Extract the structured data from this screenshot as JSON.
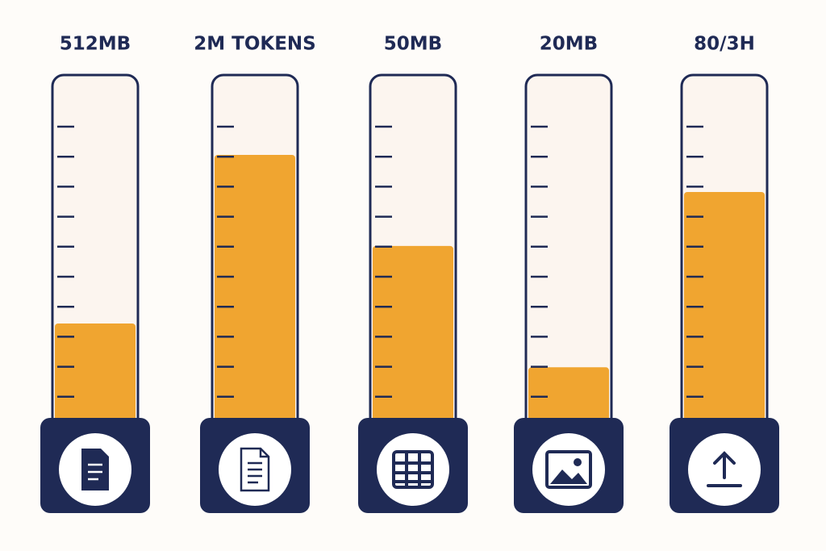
{
  "chart_data": {
    "type": "gauge",
    "categories": [
      "512MB",
      "2M TOKENS",
      "50MB",
      "20MB",
      "80/3H"
    ],
    "values": [
      28,
      78,
      51,
      15,
      67
    ],
    "ylim": [
      0,
      100
    ],
    "color": "#f0a530"
  }
}
